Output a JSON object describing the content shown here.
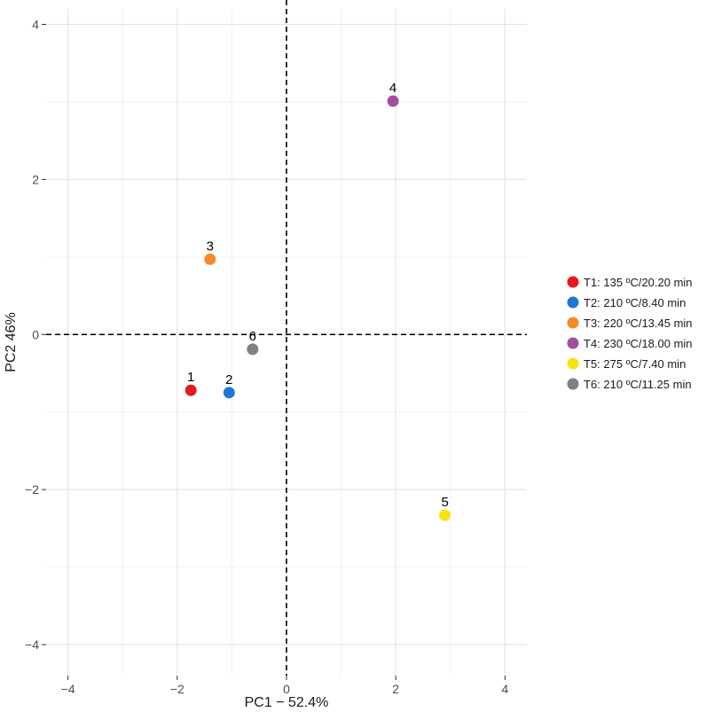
{
  "chart_data": {
    "type": "scatter",
    "title": "",
    "xlabel": "PC1 − 52.4%",
    "ylabel": "PC2 46%",
    "xlim": [
      -4.4,
      4.4
    ],
    "ylim": [
      -4.4,
      4.2
    ],
    "x_ticks": [
      -4,
      -2,
      0,
      2,
      4
    ],
    "y_ticks": [
      -4,
      -2,
      0,
      2,
      4
    ],
    "x_tick_labels": [
      "−4",
      "−2",
      "0",
      "2",
      "4"
    ],
    "y_tick_labels": [
      "−4",
      "−2",
      "0",
      "2",
      "4"
    ],
    "grid": true,
    "reference_lines": {
      "x": 0,
      "y": 0,
      "style": "dashed"
    },
    "legend_position": "right",
    "points": [
      {
        "label": "1",
        "x": -1.75,
        "y": -0.72,
        "color": "#e41a1c",
        "legend": "T1: 135 ºC/20.20 min"
      },
      {
        "label": "2",
        "x": -1.05,
        "y": -0.75,
        "color": "#1f78d4",
        "legend": "T2: 210 ºC/8.40 min"
      },
      {
        "label": "3",
        "x": -1.4,
        "y": 0.97,
        "color": "#f58a2a",
        "legend": "T3: 220 ºC/13.45 min"
      },
      {
        "label": "4",
        "x": 1.95,
        "y": 3.01,
        "color": "#a14f9e",
        "legend": "T4: 230 ºC/18.00 min"
      },
      {
        "label": "5",
        "x": 2.9,
        "y": -2.33,
        "color": "#f5e50f",
        "legend": "T5: 275 ºC/7.40 min"
      },
      {
        "label": "6",
        "x": -0.62,
        "y": -0.19,
        "color": "#808080",
        "legend": "T6: 210 ºC/11.25 min"
      }
    ]
  }
}
